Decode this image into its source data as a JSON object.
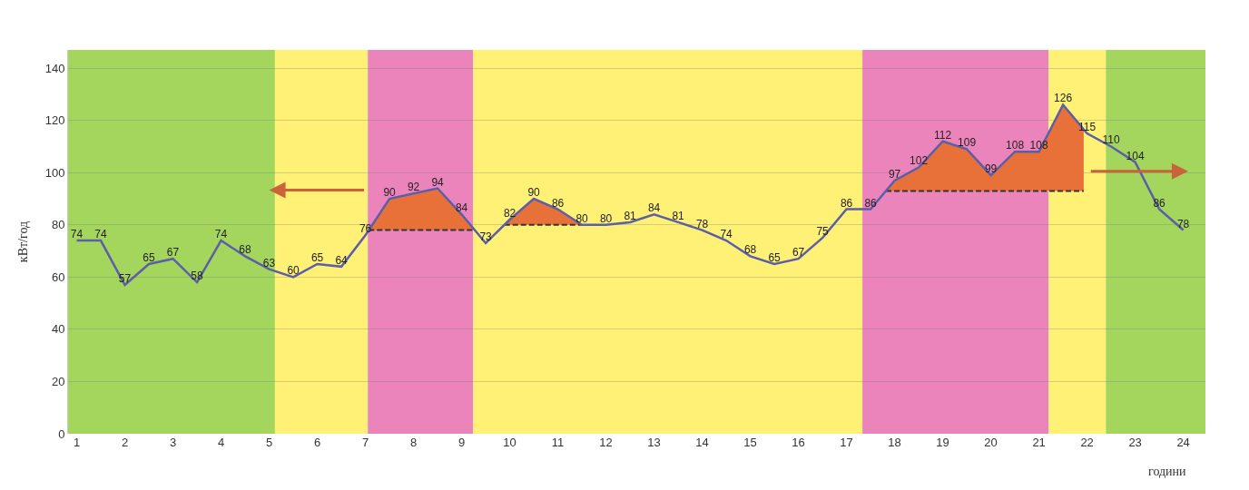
{
  "chart_data": {
    "type": "line",
    "ylabel": "кВт/год",
    "xlabel": "години",
    "xlim": [
      0.82,
      24.46
    ],
    "xticks": [
      1,
      2,
      3,
      4,
      5,
      6,
      7,
      8,
      9,
      10,
      11,
      12,
      13,
      14,
      15,
      16,
      17,
      18,
      19,
      20,
      21,
      22,
      23,
      24
    ],
    "ylim": [
      0,
      147
    ],
    "yticks": [
      0,
      20,
      40,
      60,
      80,
      100,
      120,
      140
    ],
    "grid": "y",
    "marker": "none",
    "bands": [
      {
        "axis": "x",
        "from": 0.82,
        "to": 5.12,
        "color": "#a4d65e"
      },
      {
        "axis": "x",
        "from": 5.12,
        "to": 7.05,
        "color": "#fff176"
      },
      {
        "axis": "x",
        "from": 7.05,
        "to": 9.24,
        "color": "#ec84bc"
      },
      {
        "axis": "x",
        "from": 9.24,
        "to": 17.33,
        "color": "#fff176"
      },
      {
        "axis": "x",
        "from": 17.33,
        "to": 21.2,
        "color": "#ec84bc"
      },
      {
        "axis": "x",
        "from": 21.2,
        "to": 22.39,
        "color": "#fff176"
      },
      {
        "axis": "x",
        "from": 22.39,
        "to": 24.46,
        "color": "#a4d65e"
      }
    ],
    "series": [
      {
        "type": "area",
        "color": "#e8713a",
        "x": [
          7.07,
          7.5,
          8,
          8.5,
          9,
          9.27
        ],
        "values": [
          78,
          90,
          92,
          94,
          84,
          78
        ]
      },
      {
        "type": "line",
        "color": "#333333",
        "line_style": "dashed",
        "x": [
          7.07,
          7.5,
          8,
          8.5,
          9,
          9.27
        ],
        "values": [
          78,
          78,
          78,
          78,
          78,
          78
        ]
      },
      {
        "type": "area",
        "color": "#e8713a",
        "x": [
          9.89,
          10,
          10.5,
          11,
          11.5
        ],
        "values": [
          80,
          82,
          90,
          86,
          80
        ]
      },
      {
        "type": "line",
        "color": "#333333",
        "line_style": "dashed",
        "x": [
          9.89,
          10,
          10.5,
          11,
          11.5
        ],
        "values": [
          80,
          80,
          80,
          80,
          80
        ]
      },
      {
        "type": "area",
        "color": "#e8713a",
        "x": [
          17.82,
          18,
          18.5,
          19,
          19.5,
          20,
          20.5,
          21,
          21.5,
          21.93
        ],
        "values": [
          93,
          97,
          102,
          112,
          109,
          99,
          108,
          108,
          126,
          117
        ]
      },
      {
        "type": "line",
        "color": "#333333",
        "line_style": "dashed",
        "x": [
          17.82,
          18,
          18.5,
          19,
          19.5,
          20,
          20.5,
          21,
          21.5,
          21.93
        ],
        "values": [
          93,
          93,
          93,
          93,
          93,
          93,
          93,
          93,
          93,
          93
        ]
      },
      {
        "color": "#5a5fa8",
        "line_style": "solid",
        "value_labels": [
          "74",
          "74",
          "57",
          "65",
          "67",
          "58",
          "74",
          "68",
          "63",
          "60",
          "65",
          "64",
          "76",
          "90",
          "92",
          "94",
          "84",
          "73",
          "82",
          "90",
          "86",
          "80",
          "80",
          "81",
          "84",
          "81",
          "78",
          "74",
          "68",
          "65",
          "67",
          "75",
          "86",
          "86",
          "97",
          "102",
          "112",
          "109",
          "99",
          "108",
          "108",
          "126",
          "115",
          "110",
          "104",
          "86",
          "78"
        ],
        "x": [
          1,
          1.5,
          2,
          2.5,
          3,
          3.5,
          4,
          4.5,
          5,
          5.5,
          6,
          6.5,
          7,
          7.5,
          8,
          8.5,
          9,
          9.5,
          10,
          10.5,
          11,
          11.5,
          12,
          12.5,
          13,
          13.5,
          14,
          14.5,
          15,
          15.5,
          16,
          16.5,
          17,
          17.5,
          18,
          18.5,
          19,
          19.5,
          20,
          20.5,
          21,
          21.5,
          22,
          22.5,
          23,
          23.5,
          24
        ],
        "values": [
          74,
          74,
          57,
          65,
          67,
          58,
          74,
          68,
          63,
          60,
          65,
          64,
          76,
          90,
          92,
          94,
          84,
          73,
          82,
          90,
          86,
          80,
          80,
          81,
          84,
          81,
          78,
          74,
          68,
          65,
          67,
          75,
          86,
          86,
          97,
          102,
          112,
          109,
          99,
          108,
          108,
          126,
          115,
          110,
          104,
          86,
          78
        ]
      }
    ]
  }
}
